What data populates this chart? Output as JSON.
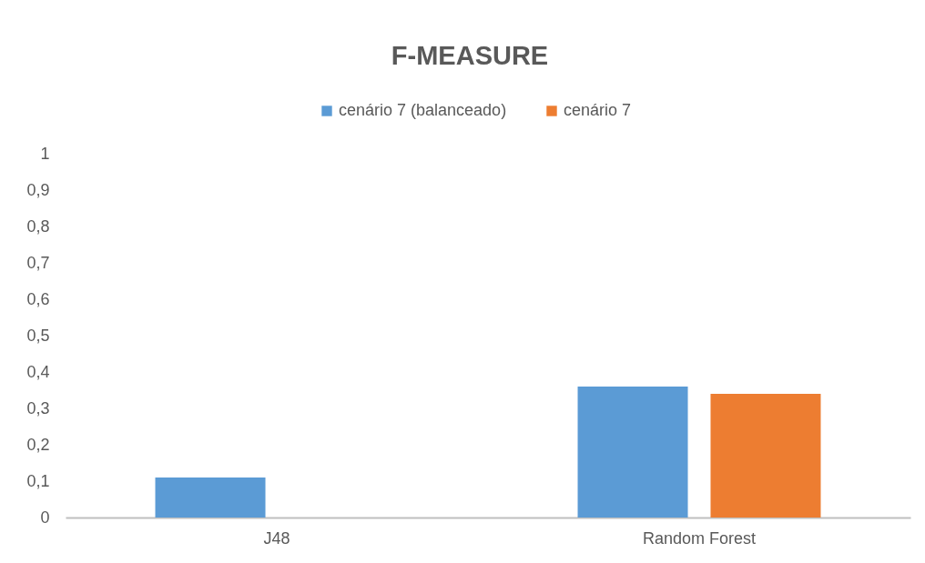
{
  "chart_data": {
    "type": "bar",
    "title": "F-MEASURE",
    "categories": [
      "J48",
      "Random Forest"
    ],
    "series": [
      {
        "name": "cenário 7 (balanceado)",
        "color": "#5b9bd5",
        "values": [
          0.11,
          0.36
        ]
      },
      {
        "name": "cenário 7",
        "color": "#ed7d31",
        "values": [
          null,
          0.34
        ]
      }
    ],
    "ylim": [
      0,
      1
    ],
    "yticks": [
      0,
      {
        "value": 0.1,
        "label": "0,1"
      },
      {
        "value": 0.2,
        "label": "0,2"
      },
      {
        "value": 0.3,
        "label": "0,3"
      },
      {
        "value": 0.4,
        "label": "0,4"
      },
      {
        "value": 0.5,
        "label": "0,5"
      },
      {
        "value": 0.6,
        "label": "0,6"
      },
      {
        "value": 0.7,
        "label": "0,7"
      },
      {
        "value": 0.8,
        "label": "0,8"
      },
      {
        "value": 0.9,
        "label": "0,9"
      },
      1
    ],
    "grid": false,
    "legend": "top"
  }
}
